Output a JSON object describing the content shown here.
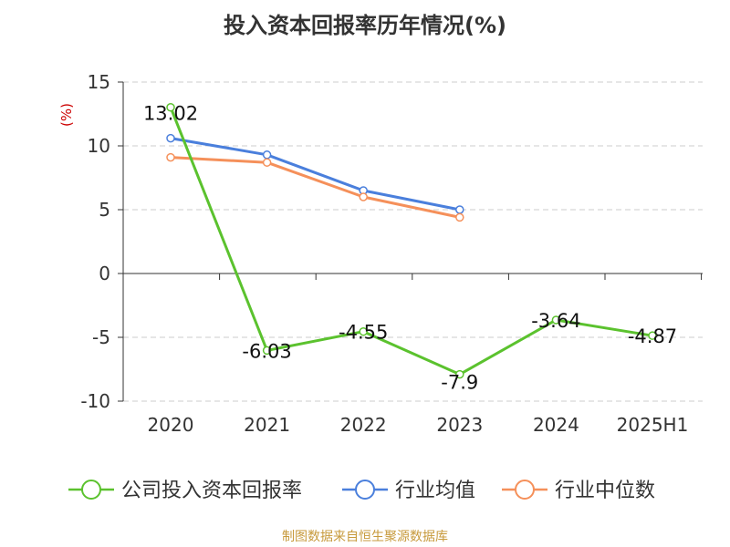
{
  "chart_data": {
    "type": "line",
    "title": "投入资本回报率历年情况(%)",
    "ylabel": "(%)",
    "xlabel": "",
    "categories": [
      "2020",
      "2021",
      "2022",
      "2023",
      "2024",
      "2025H1"
    ],
    "ylim": [
      -10,
      15
    ],
    "yticks": [
      15,
      10,
      5,
      0,
      -5,
      -10
    ],
    "grid": true,
    "legend_position": "bottom",
    "series": [
      {
        "name": "公司投入资本回报率",
        "color": "#5bc22e",
        "values": [
          13.02,
          -6.03,
          -4.55,
          -7.9,
          -3.64,
          -4.87
        ],
        "labels": [
          "13.02",
          "-6.03",
          "-4.55",
          "-7.9",
          "-3.64",
          "-4.87"
        ]
      },
      {
        "name": "行业均值",
        "color": "#4a7fdc",
        "values": [
          10.6,
          9.3,
          6.5,
          5.0,
          null,
          null
        ]
      },
      {
        "name": "行业中位数",
        "color": "#f5905a",
        "values": [
          9.1,
          8.7,
          6.0,
          4.4,
          null,
          null
        ]
      }
    ]
  },
  "source_text": "制图数据来自恒生聚源数据库"
}
